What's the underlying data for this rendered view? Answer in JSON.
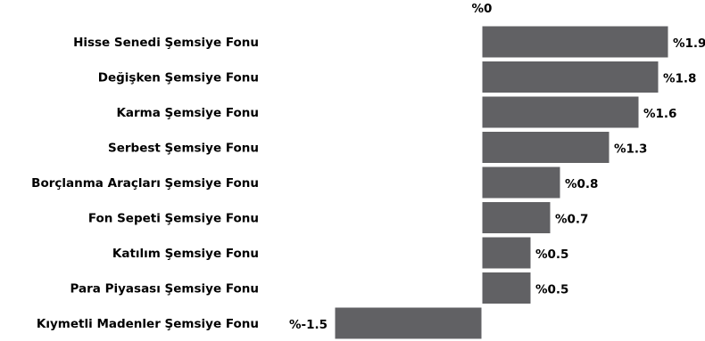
{
  "chart_data": {
    "type": "bar",
    "orientation": "horizontal",
    "zero_label": "%0",
    "value_prefix": "%",
    "bar_color": "#616164",
    "categories": [
      "Hisse Senedi Şemsiye Fonu",
      "Değişken Şemsiye Fonu",
      "Karma Şemsiye Fonu",
      "Serbest Şemsiye Fonu",
      "Borçlanma Araçları Şemsiye Fonu",
      "Fon Sepeti Şemsiye Fonu",
      "Katılım Şemsiye Fonu",
      "Para Piyasası Şemsiye Fonu",
      "Kıymetli Madenler Şemsiye Fonu"
    ],
    "values": [
      1.9,
      1.8,
      1.6,
      1.3,
      0.8,
      0.7,
      0.5,
      0.5,
      -1.5
    ],
    "value_labels": [
      "%1.9",
      "%1.8",
      "%1.6",
      "%1.3",
      "%0.8",
      "%0.7",
      "%0.5",
      "%0.5",
      "%-1.5"
    ]
  }
}
